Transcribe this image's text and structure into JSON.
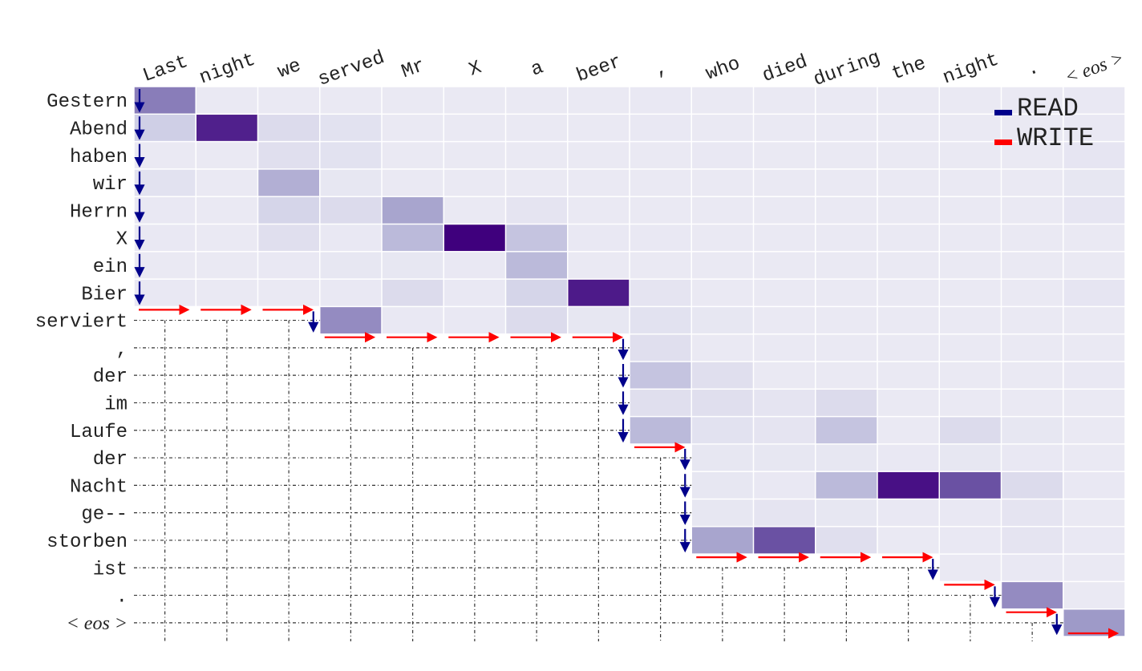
{
  "chart_data": {
    "type": "heatmap",
    "title": "",
    "x_labels": [
      "Last",
      "night",
      "we",
      "served",
      "Mr",
      "X",
      "a",
      "beer",
      ",",
      "who",
      "died",
      "during",
      "the",
      "night",
      ".",
      "< eos >"
    ],
    "y_labels": [
      "Gestern",
      "Abend",
      "haben",
      "wir",
      "Herrn",
      "X",
      "ein",
      "Bier",
      "serviert",
      ",",
      "der",
      "im",
      "Laufe",
      "der",
      "Nacht",
      "ge--",
      "storben",
      "ist",
      ".",
      "< eos >"
    ],
    "colormap": {
      "low": "#efeef6",
      "high": "#3f007d"
    },
    "values": [
      [
        0.6,
        0.04,
        0.04,
        0.04,
        0.04,
        0.04,
        0.04,
        0.04,
        0.05,
        0.04,
        0.04,
        0.04,
        0.04,
        0.04,
        0.04,
        0.05
      ],
      [
        0.25,
        0.9,
        0.15,
        0.1,
        0.04,
        0.04,
        0.04,
        0.04,
        0.05,
        0.04,
        0.04,
        0.04,
        0.04,
        0.04,
        0.04,
        0.05
      ],
      [
        0.04,
        0.04,
        0.12,
        0.1,
        0.04,
        0.04,
        0.04,
        0.04,
        0.04,
        0.05,
        0.04,
        0.04,
        0.04,
        0.04,
        0.04,
        0.07
      ],
      [
        0.1,
        0.04,
        0.4,
        0.06,
        0.04,
        0.04,
        0.04,
        0.04,
        0.04,
        0.04,
        0.04,
        0.04,
        0.04,
        0.04,
        0.04,
        0.06
      ],
      [
        0.05,
        0.04,
        0.2,
        0.15,
        0.45,
        0.04,
        0.08,
        0.04,
        0.04,
        0.04,
        0.04,
        0.04,
        0.04,
        0.04,
        0.04,
        0.07
      ],
      [
        0.05,
        0.04,
        0.12,
        0.05,
        0.35,
        1.0,
        0.3,
        0.05,
        0.05,
        0.04,
        0.04,
        0.04,
        0.04,
        0.04,
        0.04,
        0.04
      ],
      [
        0.04,
        0.04,
        0.05,
        0.06,
        0.06,
        0.05,
        0.35,
        0.04,
        0.04,
        0.04,
        0.04,
        0.04,
        0.04,
        0.04,
        0.04,
        0.04
      ],
      [
        0.05,
        0.04,
        0.04,
        0.05,
        0.15,
        0.05,
        0.2,
        0.92,
        0.08,
        0.04,
        0.04,
        0.04,
        0.04,
        0.04,
        0.04,
        0.07
      ],
      [
        null,
        null,
        null,
        0.55,
        0.05,
        0.05,
        0.15,
        0.06,
        0.1,
        0.06,
        0.04,
        0.04,
        0.04,
        0.04,
        0.04,
        0.04
      ],
      [
        null,
        null,
        null,
        null,
        null,
        null,
        null,
        null,
        0.12,
        0.04,
        0.04,
        0.04,
        0.04,
        0.04,
        0.04,
        0.04
      ],
      [
        null,
        null,
        null,
        null,
        null,
        null,
        null,
        null,
        0.3,
        0.12,
        0.04,
        0.04,
        0.04,
        0.04,
        0.04,
        0.05
      ],
      [
        null,
        null,
        null,
        null,
        null,
        null,
        null,
        null,
        0.12,
        0.12,
        0.08,
        0.15,
        0.04,
        0.04,
        0.04,
        0.04
      ],
      [
        null,
        null,
        null,
        null,
        null,
        null,
        null,
        null,
        0.35,
        0.1,
        0.08,
        0.3,
        0.04,
        0.15,
        0.06,
        0.04
      ],
      [
        null,
        null,
        null,
        null,
        null,
        null,
        null,
        null,
        null,
        0.06,
        0.06,
        0.06,
        0.05,
        0.06,
        0.05,
        0.04
      ],
      [
        null,
        null,
        null,
        null,
        null,
        null,
        null,
        null,
        null,
        0.06,
        0.05,
        0.35,
        0.95,
        0.75,
        0.15,
        0.05
      ],
      [
        null,
        null,
        null,
        null,
        null,
        null,
        null,
        null,
        null,
        0.06,
        0.08,
        0.06,
        0.05,
        0.05,
        0.08,
        0.04
      ],
      [
        null,
        null,
        null,
        null,
        null,
        null,
        null,
        null,
        null,
        0.45,
        0.75,
        0.12,
        0.04,
        0.05,
        0.08,
        0.05
      ],
      [
        null,
        null,
        null,
        null,
        null,
        null,
        null,
        null,
        null,
        null,
        null,
        null,
        null,
        0.04,
        0.05,
        0.04
      ],
      [
        null,
        null,
        null,
        null,
        null,
        null,
        null,
        null,
        null,
        null,
        null,
        null,
        null,
        null,
        0.55,
        0.04
      ],
      [
        null,
        null,
        null,
        null,
        null,
        null,
        null,
        null,
        null,
        null,
        null,
        null,
        null,
        null,
        null,
        0.5
      ]
    ],
    "read_position_per_row": [
      0,
      0,
      0,
      0,
      0,
      0,
      0,
      0,
      3,
      8,
      8,
      8,
      8,
      9,
      9,
      9,
      9,
      13,
      14,
      15
    ],
    "legend": [
      {
        "label": "READ",
        "color": "#00008b"
      },
      {
        "label": "WRITE",
        "color": "#ff0000"
      }
    ],
    "legend_position": "top-right",
    "grid": false
  }
}
